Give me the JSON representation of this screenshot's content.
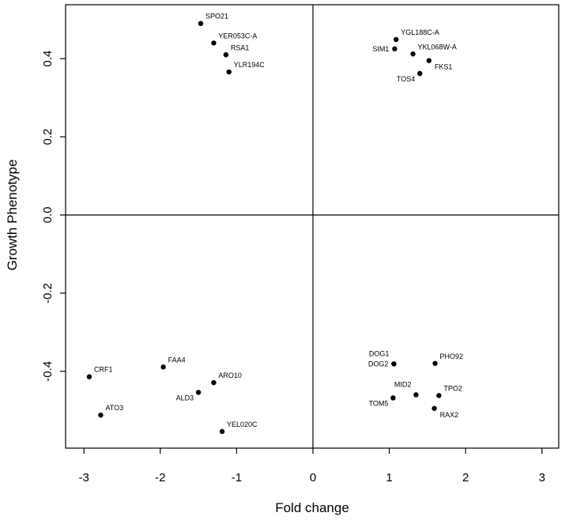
{
  "chart_data": {
    "type": "scatter",
    "title": "",
    "xlabel": "Fold change",
    "ylabel": "Growth Phenotype",
    "xlim": [
      -3.3,
      3.3
    ],
    "ylim": [
      -0.6,
      0.53
    ],
    "xticks": [
      -3,
      -2,
      -1,
      0,
      1,
      2,
      3
    ],
    "yticks": [
      -0.4,
      -0.2,
      0.0,
      0.2,
      0.4
    ],
    "xtick_labels": [
      "-3",
      "-2",
      "-1",
      "0",
      "1",
      "2",
      "3"
    ],
    "ytick_labels": [
      "-0.4",
      "-0.2",
      "0.0",
      "0.2",
      "0.4"
    ],
    "reference_lines": {
      "x": 0,
      "y": 0
    },
    "grid": false,
    "points": [
      {
        "label": "SPO21",
        "x": -1.47,
        "y": 0.49,
        "label_pos": "upper-right"
      },
      {
        "label": "YER053C-A",
        "x": -1.3,
        "y": 0.44,
        "label_pos": "upper-right"
      },
      {
        "label": "RSA1",
        "x": -1.14,
        "y": 0.41,
        "label_pos": "upper-right"
      },
      {
        "label": "YLR194C",
        "x": -1.1,
        "y": 0.366,
        "label_pos": "upper-right"
      },
      {
        "label": "YGL188C-A",
        "x": 1.09,
        "y": 0.449,
        "label_pos": "upper-right"
      },
      {
        "label": "SIM1",
        "x": 1.07,
        "y": 0.425,
        "label_pos": "left"
      },
      {
        "label": "YKL068W-A",
        "x": 1.31,
        "y": 0.412,
        "label_pos": "upper-right"
      },
      {
        "label": "FKS1",
        "x": 1.52,
        "y": 0.395,
        "label_pos": "lower-right"
      },
      {
        "label": "TOS4",
        "x": 1.4,
        "y": 0.362,
        "label_pos": "lower-left"
      },
      {
        "label": "CRF1",
        "x": -2.93,
        "y": -0.414,
        "label_pos": "upper-right"
      },
      {
        "label": "FAA4",
        "x": -1.96,
        "y": -0.389,
        "label_pos": "upper-right"
      },
      {
        "label": "ARO10",
        "x": -1.3,
        "y": -0.429,
        "label_pos": "upper-right"
      },
      {
        "label": "ALD3",
        "x": -1.5,
        "y": -0.454,
        "label_pos": "lower-left"
      },
      {
        "label": "ATO3",
        "x": -2.78,
        "y": -0.512,
        "label_pos": "upper-right"
      },
      {
        "label": "YEL020C",
        "x": -1.19,
        "y": -0.554,
        "label_pos": "upper-right"
      },
      {
        "label": "DOG1",
        "x": 1.06,
        "y": -0.381,
        "label_pos": "upper-left"
      },
      {
        "label": "DOG2",
        "x": 1.06,
        "y": -0.381,
        "label_pos": "left"
      },
      {
        "label": "PHO92",
        "x": 1.6,
        "y": -0.38,
        "label_pos": "upper-right"
      },
      {
        "label": "MID2",
        "x": 1.35,
        "y": -0.46,
        "label_pos": "upper-left"
      },
      {
        "label": "TPO2",
        "x": 1.65,
        "y": -0.462,
        "label_pos": "upper-right"
      },
      {
        "label": "TOM5",
        "x": 1.05,
        "y": -0.468,
        "label_pos": "lower-left"
      },
      {
        "label": "RAX2",
        "x": 1.59,
        "y": -0.495,
        "label_pos": "lower-right"
      }
    ]
  }
}
